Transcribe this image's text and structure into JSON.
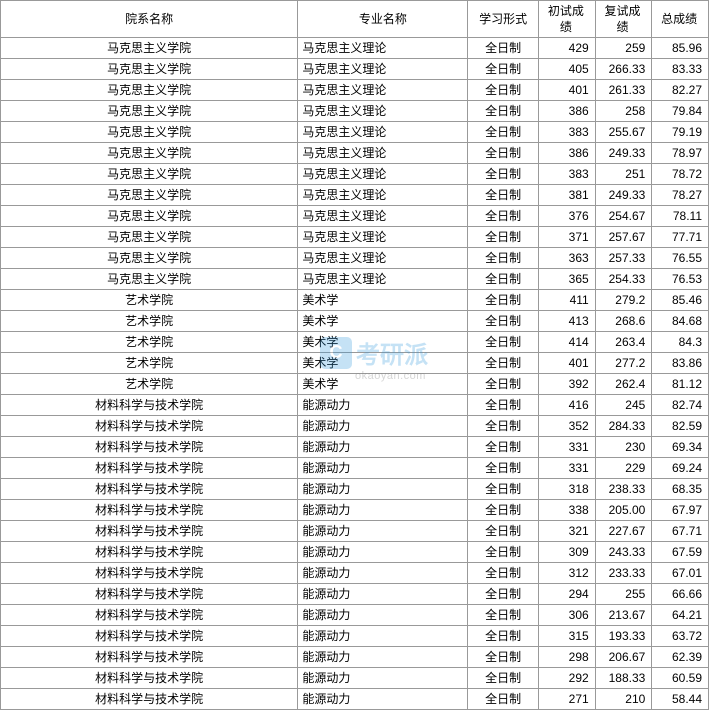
{
  "table": {
    "columns": [
      "院系名称",
      "专业名称",
      "学习形式",
      "初试成绩",
      "复试成绩",
      "总成绩"
    ],
    "column_align": [
      "center",
      "left",
      "center",
      "right",
      "right",
      "right"
    ],
    "border_color": "#999999",
    "background_color": "#ffffff",
    "font_size": 12,
    "rows": [
      [
        "马克思主义学院",
        "马克思主义理论",
        "全日制",
        "429",
        "259",
        "85.96"
      ],
      [
        "马克思主义学院",
        "马克思主义理论",
        "全日制",
        "405",
        "266.33",
        "83.33"
      ],
      [
        "马克思主义学院",
        "马克思主义理论",
        "全日制",
        "401",
        "261.33",
        "82.27"
      ],
      [
        "马克思主义学院",
        "马克思主义理论",
        "全日制",
        "386",
        "258",
        "79.84"
      ],
      [
        "马克思主义学院",
        "马克思主义理论",
        "全日制",
        "383",
        "255.67",
        "79.19"
      ],
      [
        "马克思主义学院",
        "马克思主义理论",
        "全日制",
        "386",
        "249.33",
        "78.97"
      ],
      [
        "马克思主义学院",
        "马克思主义理论",
        "全日制",
        "383",
        "251",
        "78.72"
      ],
      [
        "马克思主义学院",
        "马克思主义理论",
        "全日制",
        "381",
        "249.33",
        "78.27"
      ],
      [
        "马克思主义学院",
        "马克思主义理论",
        "全日制",
        "376",
        "254.67",
        "78.11"
      ],
      [
        "马克思主义学院",
        "马克思主义理论",
        "全日制",
        "371",
        "257.67",
        "77.71"
      ],
      [
        "马克思主义学院",
        "马克思主义理论",
        "全日制",
        "363",
        "257.33",
        "76.55"
      ],
      [
        "马克思主义学院",
        "马克思主义理论",
        "全日制",
        "365",
        "254.33",
        "76.53"
      ],
      [
        "艺术学院",
        "美术学",
        "全日制",
        "411",
        "279.2",
        "85.46"
      ],
      [
        "艺术学院",
        "美术学",
        "全日制",
        "413",
        "268.6",
        "84.68"
      ],
      [
        "艺术学院",
        "美术学",
        "全日制",
        "414",
        "263.4",
        "84.3"
      ],
      [
        "艺术学院",
        "美术学",
        "全日制",
        "401",
        "277.2",
        "83.86"
      ],
      [
        "艺术学院",
        "美术学",
        "全日制",
        "392",
        "262.4",
        "81.12"
      ],
      [
        "材料科学与技术学院",
        "能源动力",
        "全日制",
        "416",
        "245",
        "82.74"
      ],
      [
        "材料科学与技术学院",
        "能源动力",
        "全日制",
        "352",
        "284.33",
        "82.59"
      ],
      [
        "材料科学与技术学院",
        "能源动力",
        "全日制",
        "331",
        "230",
        "69.34"
      ],
      [
        "材料科学与技术学院",
        "能源动力",
        "全日制",
        "331",
        "229",
        "69.24"
      ],
      [
        "材料科学与技术学院",
        "能源动力",
        "全日制",
        "318",
        "238.33",
        "68.35"
      ],
      [
        "材料科学与技术学院",
        "能源动力",
        "全日制",
        "338",
        "205.00",
        "67.97"
      ],
      [
        "材料科学与技术学院",
        "能源动力",
        "全日制",
        "321",
        "227.67",
        "67.71"
      ],
      [
        "材料科学与技术学院",
        "能源动力",
        "全日制",
        "309",
        "243.33",
        "67.59"
      ],
      [
        "材料科学与技术学院",
        "能源动力",
        "全日制",
        "312",
        "233.33",
        "67.01"
      ],
      [
        "材料科学与技术学院",
        "能源动力",
        "全日制",
        "294",
        "255",
        "66.66"
      ],
      [
        "材料科学与技术学院",
        "能源动力",
        "全日制",
        "306",
        "213.67",
        "64.21"
      ],
      [
        "材料科学与技术学院",
        "能源动力",
        "全日制",
        "315",
        "193.33",
        "63.72"
      ],
      [
        "材料科学与技术学院",
        "能源动力",
        "全日制",
        "298",
        "206.67",
        "62.39"
      ],
      [
        "材料科学与技术学院",
        "能源动力",
        "全日制",
        "292",
        "188.33",
        "60.59"
      ],
      [
        "材料科学与技术学院",
        "能源动力",
        "全日制",
        "271",
        "210",
        "58.44"
      ]
    ]
  },
  "watermark": {
    "icon_text": "C",
    "main_text": "考研派",
    "sub_text": "okaoyan.com",
    "main_color": "#3399dd",
    "sub_color": "#888888"
  }
}
